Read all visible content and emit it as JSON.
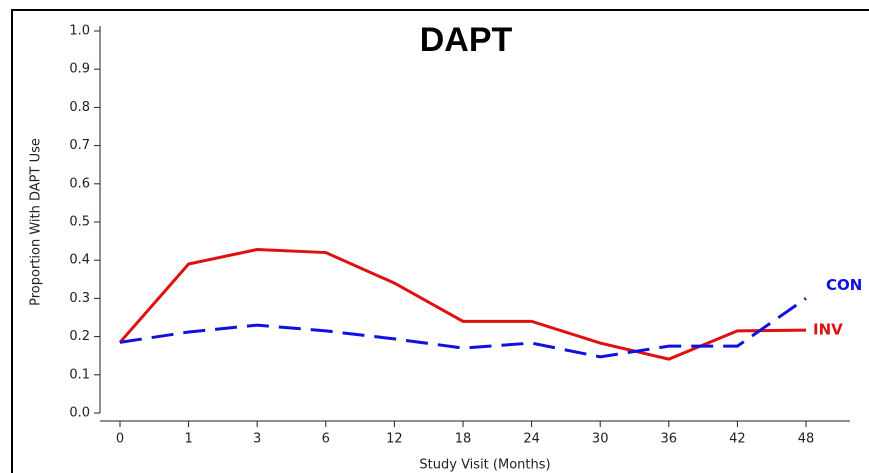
{
  "chart_data": {
    "type": "line",
    "title": "DAPT",
    "x_label": "Study Visit (Months)",
    "y_label": "Proportion With DAPT Use",
    "categories": [
      "0",
      "1",
      "3",
      "6",
      "12",
      "18",
      "24",
      "30",
      "36",
      "42",
      "48"
    ],
    "series": [
      {
        "name": "INV",
        "color": "#e01010",
        "dash": false,
        "values": [
          0.185,
          0.39,
          0.428,
          0.42,
          0.34,
          0.24,
          0.24,
          0.183,
          0.141,
          0.215,
          0.217
        ]
      },
      {
        "name": "CON",
        "color": "#1010e0",
        "dash": true,
        "values": [
          0.185,
          0.212,
          0.23,
          0.215,
          0.194,
          0.17,
          0.183,
          0.147,
          0.175,
          0.175,
          0.3
        ]
      }
    ],
    "ylim": [
      0,
      1
    ],
    "yticks": [
      {
        "value": 0,
        "label": "0.0"
      },
      0.1,
      0.2,
      0.3,
      0.4,
      0.5,
      0.6,
      0.7,
      0.8,
      0.9,
      {
        "value": 1,
        "label": "1.0"
      }
    ]
  }
}
